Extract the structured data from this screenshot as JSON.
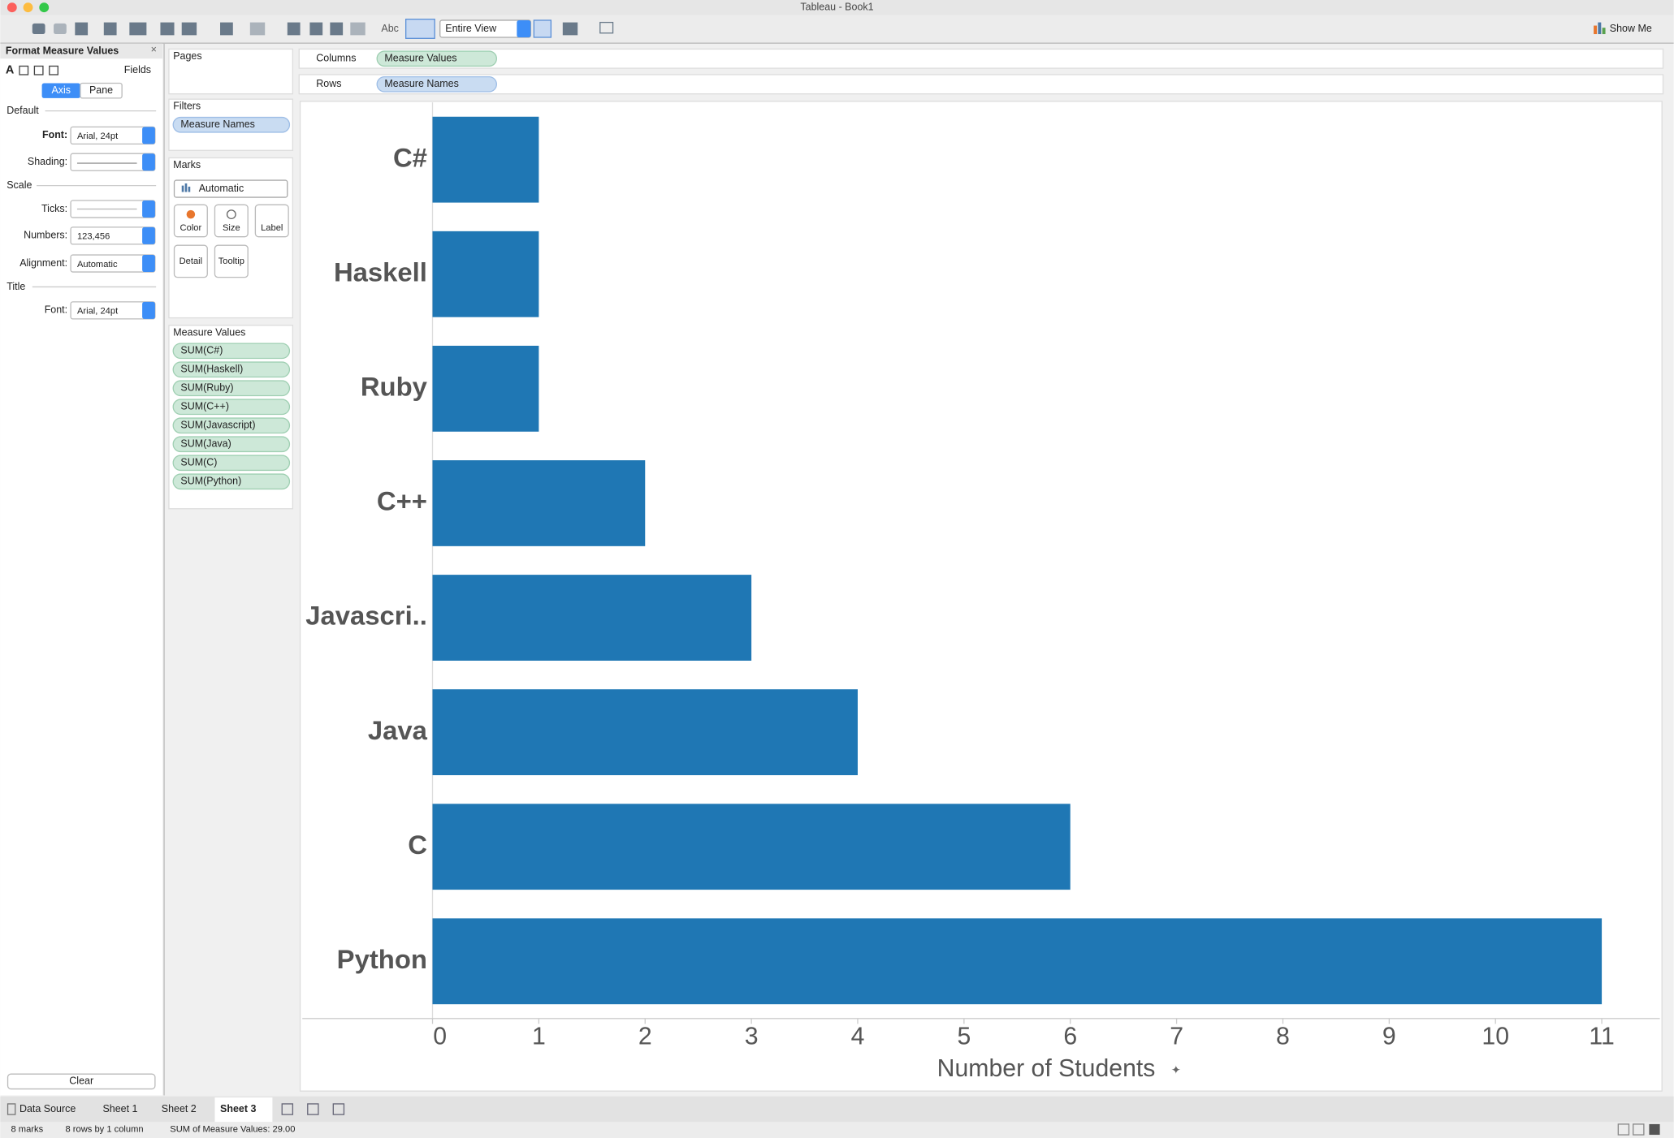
{
  "window": {
    "title": "Tableau - Book1"
  },
  "toolbar": {
    "abc": "Abc",
    "fit": "Entire View",
    "show_me": "Show Me"
  },
  "format_panel": {
    "title": "Format Measure Values",
    "fields": "Fields",
    "tabs": [
      "Axis",
      "Pane"
    ],
    "default_section": "Default",
    "font_label": "Font:",
    "font_value": "Arial, 24pt",
    "shading_label": "Shading:",
    "scale_section": "Scale",
    "ticks_label": "Ticks:",
    "numbers_label": "Numbers:",
    "numbers_value": "123,456",
    "alignment_label": "Alignment:",
    "alignment_value": "Automatic",
    "title_section": "Title",
    "title_font_label": "Font:",
    "title_font_value": "Arial, 24pt",
    "clear": "Clear"
  },
  "cards": {
    "pages": "Pages",
    "filters": "Filters",
    "filter_pill": "Measure Names",
    "marks": "Marks",
    "mark_type": "Automatic",
    "mark_buttons": [
      "Color",
      "Size",
      "Label",
      "Detail",
      "Tooltip"
    ],
    "measure_values": "Measure Values",
    "measure_pills": [
      "SUM(C#)",
      "SUM(Haskell)",
      "SUM(Ruby)",
      "SUM(C++)",
      "SUM(Javascript)",
      "SUM(Java)",
      "SUM(C)",
      "SUM(Python)"
    ]
  },
  "shelves": {
    "columns": "Columns",
    "columns_pill": "Measure Values",
    "rows": "Rows",
    "rows_pill": "Measure Names"
  },
  "chart_data": {
    "type": "bar",
    "orientation": "horizontal",
    "categories": [
      "C#",
      "Haskell",
      "Ruby",
      "C++",
      "Javascri..",
      "Java",
      "C",
      "Python"
    ],
    "values": [
      1,
      1,
      1,
      2,
      3,
      4,
      6,
      11
    ],
    "color": "#1f77b4",
    "xlim": [
      0,
      11.5
    ],
    "xticks": [
      0,
      1,
      2,
      3,
      4,
      5,
      6,
      7,
      8,
      9,
      10,
      11
    ],
    "x_label": "Number of Students",
    "grid": false
  },
  "tabs": [
    "Data Source",
    "Sheet 1",
    "Sheet 2",
    "Sheet 3"
  ],
  "status": [
    "8 marks",
    "8 rows by 1 column",
    "SUM of Measure Values: 29.00"
  ]
}
